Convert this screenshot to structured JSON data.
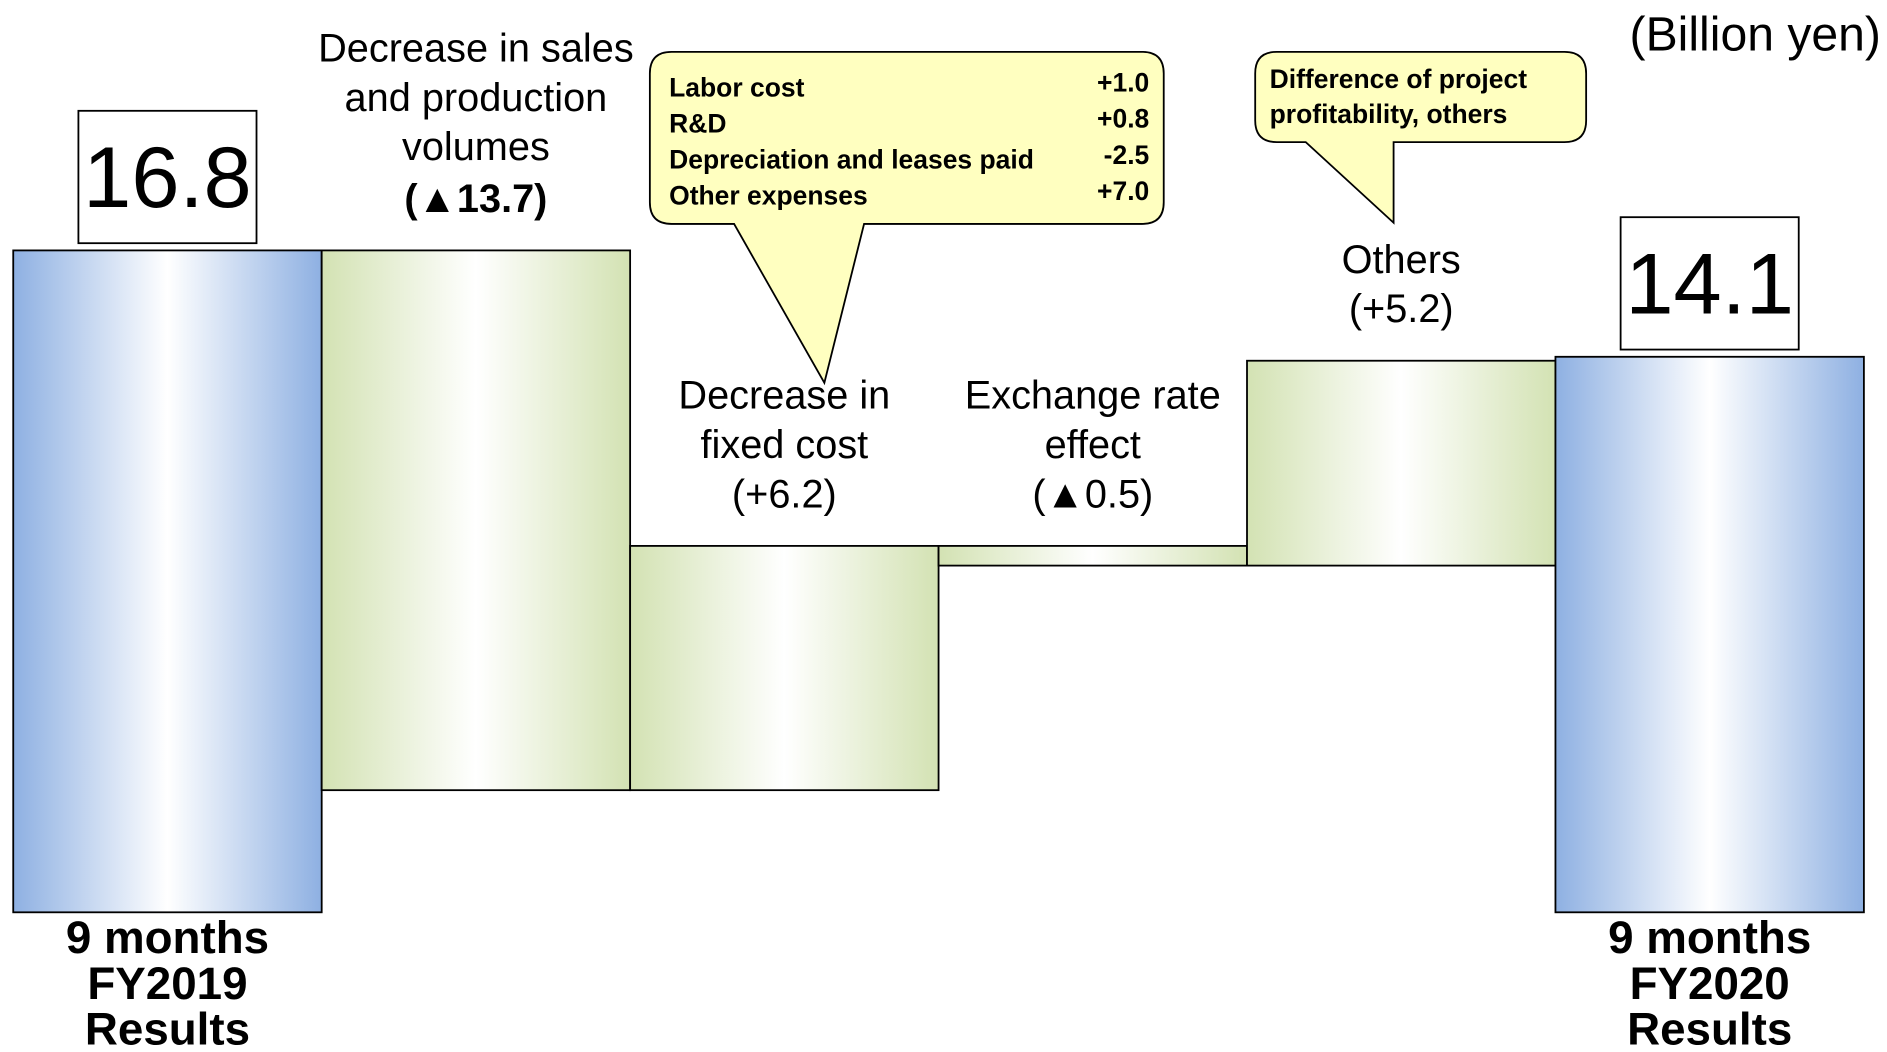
{
  "chart_data": {
    "type": "waterfall",
    "unit": "(Billion yen)",
    "categories": [
      [
        "9 months",
        "FY2019",
        "Results"
      ],
      [
        "Decrease in sales",
        "and production",
        "volumes"
      ],
      [
        "Decrease in",
        "fixed cost"
      ],
      [
        "Exchange rate",
        "effect"
      ],
      [
        "Others"
      ],
      [
        "9 months",
        "FY2020",
        "Results"
      ]
    ],
    "measures": [
      "absolute",
      "relative",
      "relative",
      "relative",
      "relative",
      "absolute"
    ],
    "values": [
      16.8,
      -13.7,
      6.2,
      -0.5,
      5.2,
      14.1
    ],
    "value_labels": [
      "16.8",
      "(▲13.7)",
      "(+6.2)",
      "(▲0.5)",
      "(+5.2)",
      "14.1"
    ],
    "ylim": [
      0,
      16.8
    ],
    "colors": {
      "total": "#8eb0e2",
      "change": "#d3e2b3"
    },
    "annotations": [
      {
        "target": 2,
        "rows": [
          {
            "label": "Labor cost",
            "value": 1.0,
            "value_label": "+1.0"
          },
          {
            "label": "R&D",
            "value": 0.8,
            "value_label": "+0.8"
          },
          {
            "label": "Depreciation and leases paid",
            "value": -2.5,
            "value_label": "-2.5"
          },
          {
            "label": "Other expenses",
            "value": 7.0,
            "value_label": "+7.0"
          }
        ]
      },
      {
        "target": 4,
        "lines": [
          "Difference of project",
          "profitability, others"
        ]
      }
    ]
  }
}
